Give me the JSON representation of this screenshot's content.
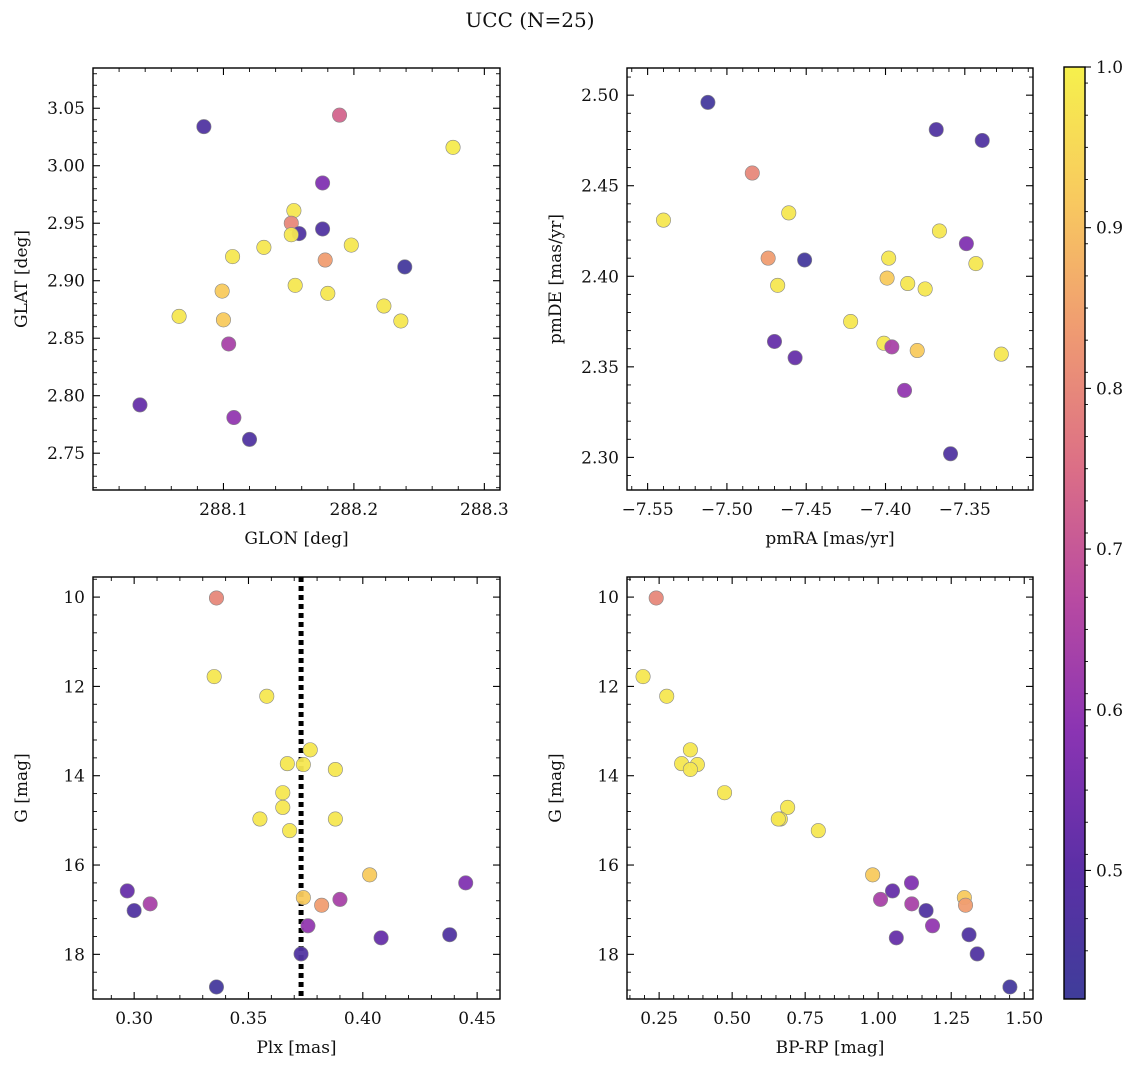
{
  "figure": {
    "title": "UCC (N=25)"
  },
  "colormap": {
    "name": "plasma",
    "stops": [
      "#3f3d9a",
      "#5c2fa6",
      "#8a34b3",
      "#b84aa2",
      "#dc6f86",
      "#ef9a72",
      "#f8c95f",
      "#f6f04c"
    ]
  },
  "marker_edge_color": "#888888",
  "chart_data": [
    {
      "type": "scatter",
      "xlabel": "GLON [deg]",
      "ylabel": "GLAT [deg]",
      "xlim": [
        288.0,
        288.312
      ],
      "ylim": [
        2.718,
        3.085
      ],
      "xticks": [
        288.1,
        288.2,
        288.3
      ],
      "xtick_labels": [
        "288.1",
        "288.2",
        "288.3"
      ],
      "yticks": [
        2.75,
        2.8,
        2.85,
        2.9,
        2.95,
        3.0,
        3.05
      ],
      "ytick_labels": [
        "2.75",
        "2.80",
        "2.85",
        "2.90",
        "2.95",
        "3.00",
        "3.05"
      ],
      "points": [
        {
          "x": 288.085,
          "y": 3.034,
          "c": 0.47
        },
        {
          "x": 288.189,
          "y": 3.044,
          "c": 0.73
        },
        {
          "x": 288.276,
          "y": 3.016,
          "c": 0.99
        },
        {
          "x": 288.176,
          "y": 2.985,
          "c": 0.57
        },
        {
          "x": 288.154,
          "y": 2.961,
          "c": 0.98
        },
        {
          "x": 288.152,
          "y": 2.95,
          "c": 0.8
        },
        {
          "x": 288.176,
          "y": 2.945,
          "c": 0.47
        },
        {
          "x": 288.158,
          "y": 2.941,
          "c": 0.47
        },
        {
          "x": 288.152,
          "y": 2.94,
          "c": 0.98
        },
        {
          "x": 288.131,
          "y": 2.929,
          "c": 0.98
        },
        {
          "x": 288.198,
          "y": 2.931,
          "c": 0.98
        },
        {
          "x": 288.107,
          "y": 2.921,
          "c": 0.98
        },
        {
          "x": 288.178,
          "y": 2.918,
          "c": 0.84
        },
        {
          "x": 288.239,
          "y": 2.912,
          "c": 0.44
        },
        {
          "x": 288.155,
          "y": 2.896,
          "c": 0.98
        },
        {
          "x": 288.099,
          "y": 2.891,
          "c": 0.92
        },
        {
          "x": 288.18,
          "y": 2.889,
          "c": 0.98
        },
        {
          "x": 288.223,
          "y": 2.878,
          "c": 0.98
        },
        {
          "x": 288.066,
          "y": 2.869,
          "c": 0.98
        },
        {
          "x": 288.1,
          "y": 2.866,
          "c": 0.92
        },
        {
          "x": 288.236,
          "y": 2.865,
          "c": 0.98
        },
        {
          "x": 288.104,
          "y": 2.845,
          "c": 0.64
        },
        {
          "x": 288.036,
          "y": 2.792,
          "c": 0.52
        },
        {
          "x": 288.108,
          "y": 2.781,
          "c": 0.6
        },
        {
          "x": 288.12,
          "y": 2.762,
          "c": 0.47
        }
      ]
    },
    {
      "type": "scatter",
      "xlabel": "pmRA [mas/yr]",
      "ylabel": "pmDE [mas/yr]",
      "xlim": [
        -7.563,
        -7.307
      ],
      "ylim": [
        2.282,
        2.515
      ],
      "xticks": [
        -7.55,
        -7.5,
        -7.45,
        -7.4,
        -7.35
      ],
      "xtick_labels": [
        "−7.55",
        "−7.50",
        "−7.45",
        "−7.40",
        "−7.35"
      ],
      "yticks": [
        2.3,
        2.35,
        2.4,
        2.45,
        2.5
      ],
      "ytick_labels": [
        "2.30",
        "2.35",
        "2.40",
        "2.45",
        "2.50"
      ],
      "points": [
        {
          "x": -7.512,
          "y": 2.496,
          "c": 0.44
        },
        {
          "x": -7.368,
          "y": 2.481,
          "c": 0.47
        },
        {
          "x": -7.339,
          "y": 2.475,
          "c": 0.47
        },
        {
          "x": -7.484,
          "y": 2.457,
          "c": 0.8
        },
        {
          "x": -7.461,
          "y": 2.435,
          "c": 0.98
        },
        {
          "x": -7.54,
          "y": 2.431,
          "c": 0.98
        },
        {
          "x": -7.366,
          "y": 2.425,
          "c": 0.98
        },
        {
          "x": -7.349,
          "y": 2.418,
          "c": 0.57
        },
        {
          "x": -7.474,
          "y": 2.41,
          "c": 0.84
        },
        {
          "x": -7.398,
          "y": 2.41,
          "c": 0.98
        },
        {
          "x": -7.451,
          "y": 2.409,
          "c": 0.44
        },
        {
          "x": -7.343,
          "y": 2.407,
          "c": 0.98
        },
        {
          "x": -7.399,
          "y": 2.399,
          "c": 0.92
        },
        {
          "x": -7.386,
          "y": 2.396,
          "c": 0.98
        },
        {
          "x": -7.468,
          "y": 2.395,
          "c": 0.98
        },
        {
          "x": -7.375,
          "y": 2.393,
          "c": 0.98
        },
        {
          "x": -7.422,
          "y": 2.375,
          "c": 0.98
        },
        {
          "x": -7.47,
          "y": 2.364,
          "c": 0.52
        },
        {
          "x": -7.401,
          "y": 2.363,
          "c": 0.98
        },
        {
          "x": -7.396,
          "y": 2.361,
          "c": 0.64
        },
        {
          "x": -7.38,
          "y": 2.359,
          "c": 0.92
        },
        {
          "x": -7.327,
          "y": 2.357,
          "c": 0.98
        },
        {
          "x": -7.457,
          "y": 2.355,
          "c": 0.52
        },
        {
          "x": -7.388,
          "y": 2.337,
          "c": 0.6
        },
        {
          "x": -7.359,
          "y": 2.302,
          "c": 0.47
        }
      ]
    },
    {
      "type": "scatter",
      "xlabel": "Plx [mas]",
      "ylabel": "G [mag]",
      "xlim": [
        0.282,
        0.46
      ],
      "ylim": [
        19.0,
        9.55
      ],
      "y_inverted": true,
      "xticks": [
        0.3,
        0.35,
        0.4,
        0.45
      ],
      "xtick_labels": [
        "0.30",
        "0.35",
        "0.40",
        "0.45"
      ],
      "yticks": [
        10,
        12,
        14,
        16,
        18
      ],
      "ytick_labels": [
        "10",
        "12",
        "14",
        "16",
        "18"
      ],
      "vline": {
        "x": 0.373,
        "style": "dotted",
        "color": "#000000"
      },
      "points": [
        {
          "x": 0.336,
          "y": 10.02,
          "c": 0.8
        },
        {
          "x": 0.335,
          "y": 11.78,
          "c": 0.98
        },
        {
          "x": 0.358,
          "y": 12.22,
          "c": 0.98
        },
        {
          "x": 0.377,
          "y": 13.42,
          "c": 0.98
        },
        {
          "x": 0.367,
          "y": 13.73,
          "c": 0.98
        },
        {
          "x": 0.374,
          "y": 13.75,
          "c": 0.98
        },
        {
          "x": 0.388,
          "y": 13.86,
          "c": 0.98
        },
        {
          "x": 0.365,
          "y": 14.38,
          "c": 0.98
        },
        {
          "x": 0.365,
          "y": 14.71,
          "c": 0.98
        },
        {
          "x": 0.355,
          "y": 14.97,
          "c": 0.98
        },
        {
          "x": 0.388,
          "y": 14.97,
          "c": 0.98
        },
        {
          "x": 0.368,
          "y": 15.23,
          "c": 0.98
        },
        {
          "x": 0.403,
          "y": 16.22,
          "c": 0.92
        },
        {
          "x": 0.445,
          "y": 16.4,
          "c": 0.57
        },
        {
          "x": 0.297,
          "y": 16.58,
          "c": 0.52
        },
        {
          "x": 0.374,
          "y": 16.73,
          "c": 0.92
        },
        {
          "x": 0.39,
          "y": 16.77,
          "c": 0.64
        },
        {
          "x": 0.307,
          "y": 16.87,
          "c": 0.64
        },
        {
          "x": 0.382,
          "y": 16.9,
          "c": 0.84
        },
        {
          "x": 0.3,
          "y": 17.02,
          "c": 0.47
        },
        {
          "x": 0.376,
          "y": 17.36,
          "c": 0.6
        },
        {
          "x": 0.438,
          "y": 17.56,
          "c": 0.47
        },
        {
          "x": 0.408,
          "y": 17.63,
          "c": 0.52
        },
        {
          "x": 0.373,
          "y": 17.99,
          "c": 0.47
        },
        {
          "x": 0.336,
          "y": 18.73,
          "c": 0.44
        }
      ]
    },
    {
      "type": "scatter",
      "xlabel": "BP-RP [mag]",
      "ylabel": "G [mag]",
      "xlim": [
        0.14,
        1.53
      ],
      "ylim": [
        19.0,
        9.55
      ],
      "y_inverted": true,
      "xticks": [
        0.25,
        0.5,
        0.75,
        1.0,
        1.25,
        1.5
      ],
      "xtick_labels": [
        "0.25",
        "0.50",
        "0.75",
        "1.00",
        "1.25",
        "1.50"
      ],
      "yticks": [
        10,
        12,
        14,
        16,
        18
      ],
      "ytick_labels": [
        "10",
        "12",
        "14",
        "16",
        "18"
      ],
      "points": [
        {
          "x": 0.24,
          "y": 10.02,
          "c": 0.8
        },
        {
          "x": 0.195,
          "y": 11.78,
          "c": 0.98
        },
        {
          "x": 0.276,
          "y": 12.22,
          "c": 0.98
        },
        {
          "x": 0.357,
          "y": 13.42,
          "c": 0.98
        },
        {
          "x": 0.327,
          "y": 13.73,
          "c": 0.98
        },
        {
          "x": 0.381,
          "y": 13.75,
          "c": 0.98
        },
        {
          "x": 0.357,
          "y": 13.86,
          "c": 0.98
        },
        {
          "x": 0.474,
          "y": 14.38,
          "c": 0.98
        },
        {
          "x": 0.69,
          "y": 14.71,
          "c": 0.98
        },
        {
          "x": 0.665,
          "y": 14.97,
          "c": 0.98
        },
        {
          "x": 0.658,
          "y": 14.97,
          "c": 0.98
        },
        {
          "x": 0.795,
          "y": 15.23,
          "c": 0.98
        },
        {
          "x": 0.981,
          "y": 16.22,
          "c": 0.92
        },
        {
          "x": 1.114,
          "y": 16.4,
          "c": 0.57
        },
        {
          "x": 1.049,
          "y": 16.58,
          "c": 0.52
        },
        {
          "x": 1.295,
          "y": 16.73,
          "c": 0.92
        },
        {
          "x": 1.008,
          "y": 16.77,
          "c": 0.64
        },
        {
          "x": 1.115,
          "y": 16.87,
          "c": 0.64
        },
        {
          "x": 1.299,
          "y": 16.9,
          "c": 0.84
        },
        {
          "x": 1.164,
          "y": 17.02,
          "c": 0.47
        },
        {
          "x": 1.186,
          "y": 17.36,
          "c": 0.6
        },
        {
          "x": 1.311,
          "y": 17.56,
          "c": 0.47
        },
        {
          "x": 1.062,
          "y": 17.63,
          "c": 0.52
        },
        {
          "x": 1.339,
          "y": 17.99,
          "c": 0.47
        },
        {
          "x": 1.451,
          "y": 18.73,
          "c": 0.44
        }
      ]
    }
  ],
  "colorbar": {
    "range": [
      0.42,
      1.0
    ],
    "ticks": [
      0.5,
      0.6,
      0.7,
      0.8,
      0.9,
      1.0
    ],
    "tick_labels": [
      "0.5",
      "0.6",
      "0.7",
      "0.8",
      "0.9",
      "1.0"
    ]
  }
}
